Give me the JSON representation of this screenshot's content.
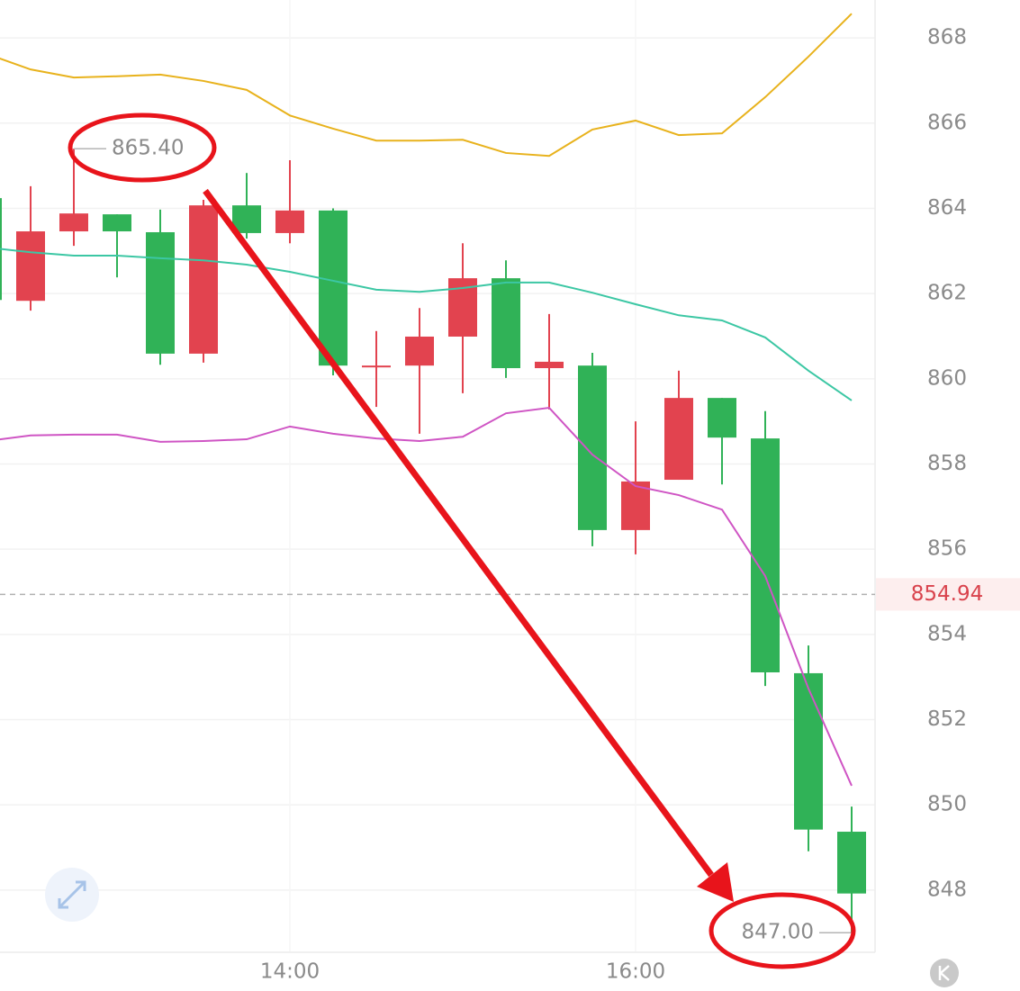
{
  "chart_data": {
    "type": "candlestick",
    "categories": [
      null,
      null,
      null,
      null,
      null,
      null,
      null,
      "14:00",
      null,
      null,
      null,
      null,
      null,
      null,
      null,
      "16:00",
      null,
      null,
      null,
      null,
      null
    ],
    "open": [
      864.24,
      861.83,
      863.46,
      863.86,
      863.44,
      860.59,
      864.07,
      863.42,
      863.95,
      860.31,
      860.31,
      860.99,
      862.36,
      860.25,
      860.31,
      856.45,
      857.63,
      859.55,
      858.6,
      853.09,
      849.37
    ],
    "high": [
      864.3,
      864.52,
      865.4,
      863.86,
      863.97,
      864.2,
      864.83,
      865.13,
      864.0,
      861.12,
      861.66,
      863.18,
      862.78,
      861.52,
      860.61,
      859.0,
      860.19,
      859.55,
      859.24,
      853.74,
      849.96
    ],
    "low": [
      861.8,
      861.6,
      863.12,
      862.38,
      860.33,
      860.38,
      863.29,
      863.18,
      860.08,
      859.34,
      858.71,
      859.66,
      860.02,
      859.28,
      856.07,
      855.88,
      857.63,
      857.52,
      852.79,
      848.91,
      847.0
    ],
    "close": [
      861.85,
      863.46,
      863.88,
      863.46,
      860.59,
      864.07,
      863.42,
      863.95,
      860.31,
      860.31,
      860.99,
      862.36,
      860.25,
      860.4,
      856.45,
      857.59,
      859.55,
      858.62,
      853.11,
      849.42,
      847.92
    ],
    "up_color": "#e2434f",
    "down_color": "#30b257",
    "lines": [
      {
        "color": "#e8b21c",
        "values": [
          867.62,
          867.26,
          867.07,
          867.1,
          867.14,
          866.99,
          866.78,
          866.18,
          865.87,
          865.59,
          865.59,
          865.61,
          865.3,
          865.23,
          865.85,
          866.06,
          865.72,
          865.76,
          866.61,
          867.56,
          868.57
        ]
      },
      {
        "color": "#3cc7a4",
        "values": [
          863.08,
          862.97,
          862.89,
          862.89,
          862.83,
          862.78,
          862.68,
          862.51,
          862.3,
          862.09,
          862.04,
          862.13,
          862.26,
          862.26,
          862.02,
          861.75,
          861.49,
          861.37,
          860.97,
          860.19,
          859.49
        ]
      },
      {
        "color": "#cf55c4",
        "values": [
          858.54,
          858.67,
          858.69,
          858.69,
          858.52,
          858.54,
          858.58,
          858.88,
          858.71,
          858.6,
          858.54,
          858.64,
          859.19,
          859.32,
          858.22,
          857.48,
          857.27,
          856.93,
          855.37,
          852.73,
          850.45
        ]
      }
    ],
    "ylim": [
      846.54,
      868.89
    ],
    "yticks": [
      848,
      850,
      852,
      854,
      856,
      858,
      860,
      862,
      864,
      866,
      868
    ],
    "grid": true,
    "last_price": 854.94,
    "high_label": {
      "value": 865.4,
      "label": "865.40"
    },
    "low_label": {
      "value": 847,
      "label": "847.00"
    }
  }
}
